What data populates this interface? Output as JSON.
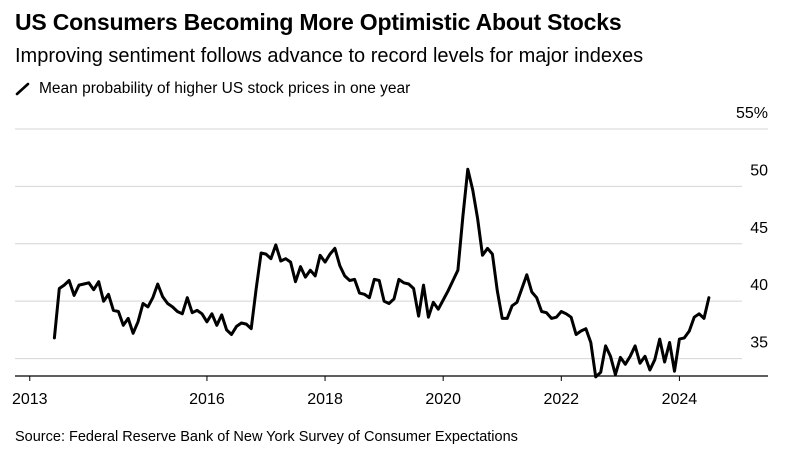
{
  "title": "US Consumers Becoming More Optimistic About Stocks",
  "subtitle": "Improving sentiment follows advance to record levels for major indexes",
  "source": "Source: Federal Reserve Bank of New York Survey of Consumer Expectations",
  "chart_data": {
    "type": "line",
    "series": [
      {
        "name": "Mean probability of higher US stock prices in one year",
        "color": "#000000",
        "points": [
          [
            "2013-06",
            36.8
          ],
          [
            "2013-07",
            41.1
          ],
          [
            "2013-08",
            41.4
          ],
          [
            "2013-09",
            41.8
          ],
          [
            "2013-10",
            40.5
          ],
          [
            "2013-11",
            41.4
          ],
          [
            "2013-12",
            41.5
          ],
          [
            "2014-01",
            41.6
          ],
          [
            "2014-02",
            41.0
          ],
          [
            "2014-03",
            41.7
          ],
          [
            "2014-04",
            40.0
          ],
          [
            "2014-05",
            40.6
          ],
          [
            "2014-06",
            39.2
          ],
          [
            "2014-07",
            39.1
          ],
          [
            "2014-08",
            37.9
          ],
          [
            "2014-09",
            38.5
          ],
          [
            "2014-10",
            37.2
          ],
          [
            "2014-11",
            38.2
          ],
          [
            "2014-12",
            39.8
          ],
          [
            "2015-01",
            39.5
          ],
          [
            "2015-02",
            40.3
          ],
          [
            "2015-03",
            41.5
          ],
          [
            "2015-04",
            40.4
          ],
          [
            "2015-05",
            39.8
          ],
          [
            "2015-06",
            39.5
          ],
          [
            "2015-07",
            39.1
          ],
          [
            "2015-08",
            38.9
          ],
          [
            "2015-09",
            40.3
          ],
          [
            "2015-10",
            39.0
          ],
          [
            "2015-11",
            39.2
          ],
          [
            "2015-12",
            38.9
          ],
          [
            "2016-01",
            38.2
          ],
          [
            "2016-02",
            38.9
          ],
          [
            "2016-03",
            37.9
          ],
          [
            "2016-04",
            38.8
          ],
          [
            "2016-05",
            37.5
          ],
          [
            "2016-06",
            37.1
          ],
          [
            "2016-07",
            37.8
          ],
          [
            "2016-08",
            38.1
          ],
          [
            "2016-09",
            38.0
          ],
          [
            "2016-10",
            37.6
          ],
          [
            "2016-11",
            41.1
          ],
          [
            "2016-12",
            44.2
          ],
          [
            "2017-01",
            44.1
          ],
          [
            "2017-02",
            43.7
          ],
          [
            "2017-03",
            44.9
          ],
          [
            "2017-04",
            43.5
          ],
          [
            "2017-05",
            43.7
          ],
          [
            "2017-06",
            43.4
          ],
          [
            "2017-07",
            41.7
          ],
          [
            "2017-08",
            43.0
          ],
          [
            "2017-09",
            42.1
          ],
          [
            "2017-10",
            42.7
          ],
          [
            "2017-11",
            42.2
          ],
          [
            "2017-12",
            44.0
          ],
          [
            "2018-01",
            43.4
          ],
          [
            "2018-02",
            44.1
          ],
          [
            "2018-03",
            44.6
          ],
          [
            "2018-04",
            43.1
          ],
          [
            "2018-05",
            42.2
          ],
          [
            "2018-06",
            41.8
          ],
          [
            "2018-07",
            41.9
          ],
          [
            "2018-08",
            40.7
          ],
          [
            "2018-09",
            40.6
          ],
          [
            "2018-10",
            40.3
          ],
          [
            "2018-11",
            41.9
          ],
          [
            "2018-12",
            41.8
          ],
          [
            "2019-01",
            40.0
          ],
          [
            "2019-02",
            39.8
          ],
          [
            "2019-03",
            40.2
          ],
          [
            "2019-04",
            41.9
          ],
          [
            "2019-05",
            41.6
          ],
          [
            "2019-06",
            41.5
          ],
          [
            "2019-07",
            41.1
          ],
          [
            "2019-08",
            38.7
          ],
          [
            "2019-09",
            41.4
          ],
          [
            "2019-10",
            38.6
          ],
          [
            "2019-11",
            39.9
          ],
          [
            "2019-12",
            39.3
          ],
          [
            "2020-01",
            40.1
          ],
          [
            "2020-02",
            40.9
          ],
          [
            "2020-03",
            41.8
          ],
          [
            "2020-04",
            42.7
          ],
          [
            "2020-05",
            47.4
          ],
          [
            "2020-06",
            51.5
          ],
          [
            "2020-07",
            49.7
          ],
          [
            "2020-08",
            47.2
          ],
          [
            "2020-09",
            44.0
          ],
          [
            "2020-10",
            44.6
          ],
          [
            "2020-11",
            44.1
          ],
          [
            "2020-12",
            40.9
          ],
          [
            "2021-01",
            38.5
          ],
          [
            "2021-02",
            38.5
          ],
          [
            "2021-03",
            39.6
          ],
          [
            "2021-04",
            39.9
          ],
          [
            "2021-05",
            41.1
          ],
          [
            "2021-06",
            42.3
          ],
          [
            "2021-07",
            40.8
          ],
          [
            "2021-08",
            40.3
          ],
          [
            "2021-09",
            39.1
          ],
          [
            "2021-10",
            39.0
          ],
          [
            "2021-11",
            38.5
          ],
          [
            "2021-12",
            38.6
          ],
          [
            "2022-01",
            39.1
          ],
          [
            "2022-02",
            38.9
          ],
          [
            "2022-03",
            38.6
          ],
          [
            "2022-04",
            37.1
          ],
          [
            "2022-05",
            37.4
          ],
          [
            "2022-06",
            37.6
          ],
          [
            "2022-07",
            36.4
          ],
          [
            "2022-08",
            33.4
          ],
          [
            "2022-09",
            33.8
          ],
          [
            "2022-10",
            36.1
          ],
          [
            "2022-11",
            35.2
          ],
          [
            "2022-12",
            33.6
          ],
          [
            "2023-01",
            35.1
          ],
          [
            "2023-02",
            34.5
          ],
          [
            "2023-03",
            35.2
          ],
          [
            "2023-04",
            36.1
          ],
          [
            "2023-05",
            34.6
          ],
          [
            "2023-06",
            35.2
          ],
          [
            "2023-07",
            34.0
          ],
          [
            "2023-08",
            34.9
          ],
          [
            "2023-09",
            36.7
          ],
          [
            "2023-10",
            34.7
          ],
          [
            "2023-11",
            36.4
          ],
          [
            "2023-12",
            33.9
          ],
          [
            "2024-01",
            36.7
          ],
          [
            "2024-02",
            36.8
          ],
          [
            "2024-03",
            37.4
          ],
          [
            "2024-04",
            38.6
          ],
          [
            "2024-05",
            38.9
          ],
          [
            "2024-06",
            38.5
          ],
          [
            "2024-07",
            40.3
          ]
        ]
      }
    ],
    "x_ticks": [
      "2013",
      "2016",
      "2018",
      "2020",
      "2022",
      "2024"
    ],
    "y_ticks": [
      {
        "value": 55,
        "label": "55%"
      },
      {
        "value": 50,
        "label": "50"
      },
      {
        "value": 45,
        "label": "45"
      },
      {
        "value": 40,
        "label": "40"
      },
      {
        "value": 35,
        "label": "35"
      }
    ],
    "xlim": [
      "2012-10",
      "2025-07"
    ],
    "ylim": [
      32,
      55
    ],
    "grid": "horizontal",
    "y_axis_side": "right"
  }
}
